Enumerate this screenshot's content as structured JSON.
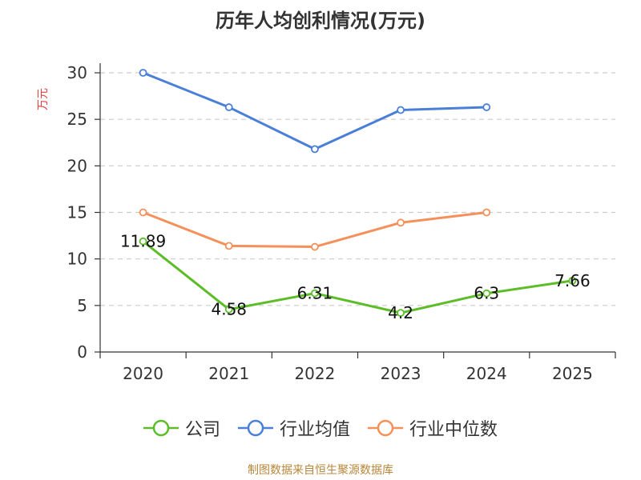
{
  "chart_data": {
    "type": "line",
    "title": "历年人均创利情况(万元)",
    "ylabel": "万元",
    "xlabel": "",
    "categories": [
      "2020",
      "2021",
      "2022",
      "2023",
      "2024",
      "2025"
    ],
    "ylim": [
      0,
      30
    ],
    "yticks": [
      0,
      5,
      10,
      15,
      20,
      25,
      30
    ],
    "grid": true,
    "legend_position": "bottom",
    "series": [
      {
        "name": "公司",
        "color": "#5cbd28",
        "values": [
          11.89,
          4.58,
          6.31,
          4.2,
          6.3,
          7.66
        ],
        "labels": [
          "11.89",
          "4.58",
          "6.31",
          "4.2",
          "6.3",
          "7.66"
        ]
      },
      {
        "name": "行业均值",
        "color": "#4a7fd9",
        "values": [
          30.0,
          26.3,
          21.8,
          26.0,
          26.3,
          null
        ]
      },
      {
        "name": "行业中位数",
        "color": "#f5905a",
        "values": [
          15.0,
          11.4,
          11.3,
          13.9,
          15.0,
          null
        ]
      }
    ]
  },
  "source": "制图数据来自恒生聚源数据库"
}
